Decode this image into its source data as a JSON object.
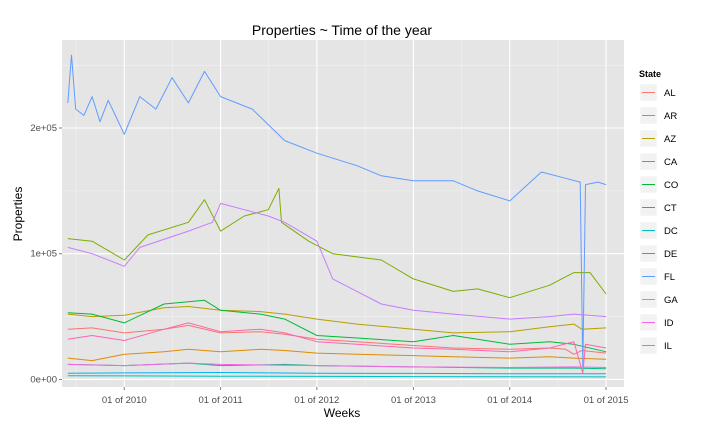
{
  "chart_data": {
    "type": "line",
    "title": "Properties ~ Time of the year",
    "xlabel": "Weeks",
    "ylabel": "Properties",
    "x_ticks": [
      {
        "label": "01 of 2010",
        "date": "2010-01-01"
      },
      {
        "label": "01 of 2011",
        "date": "2011-01-01"
      },
      {
        "label": "01 of 2012",
        "date": "2012-01-01"
      },
      {
        "label": "01 of 2013",
        "date": "2013-01-01"
      },
      {
        "label": "01 of 2014",
        "date": "2014-01-01"
      },
      {
        "label": "01 of 2015",
        "date": "2015-01-01"
      }
    ],
    "y_ticks": [
      {
        "label": "0e+00",
        "value": 0
      },
      {
        "label": "1e+05",
        "value": 100000
      },
      {
        "label": "2e+05",
        "value": 200000
      }
    ],
    "xlim": [
      "2009-05-10",
      "2015-03-10"
    ],
    "ylim": [
      -6000,
      270000
    ],
    "grid": true,
    "legend": {
      "title": "State",
      "position": "right"
    },
    "series": [
      {
        "name": "AL",
        "color": "#F8766D",
        "points": [
          [
            "2009-06-01",
            40000
          ],
          [
            "2009-09-01",
            41000
          ],
          [
            "2010-01-01",
            37000
          ],
          [
            "2010-06-01",
            40000
          ],
          [
            "2010-09-01",
            43000
          ],
          [
            "2011-01-01",
            37000
          ],
          [
            "2011-06-01",
            38000
          ],
          [
            "2011-09-01",
            36000
          ],
          [
            "2012-01-01",
            32000
          ],
          [
            "2012-06-01",
            30000
          ],
          [
            "2013-01-01",
            27000
          ],
          [
            "2013-06-01",
            25000
          ],
          [
            "2014-01-01",
            24000
          ],
          [
            "2014-06-01",
            25000
          ],
          [
            "2014-08-01",
            24000
          ],
          [
            "2014-09-01",
            20000
          ],
          [
            "2014-10-01",
            23000
          ],
          [
            "2015-01-01",
            21000
          ]
        ]
      },
      {
        "name": "AR",
        "color": "#DE8C00",
        "points": [
          [
            "2009-06-01",
            17000
          ],
          [
            "2009-09-01",
            15000
          ],
          [
            "2010-01-01",
            20000
          ],
          [
            "2010-06-01",
            22000
          ],
          [
            "2010-09-01",
            24000
          ],
          [
            "2011-01-01",
            22000
          ],
          [
            "2011-06-01",
            24000
          ],
          [
            "2011-09-01",
            23000
          ],
          [
            "2012-01-01",
            21000
          ],
          [
            "2012-06-01",
            20000
          ],
          [
            "2013-01-01",
            19000
          ],
          [
            "2013-06-01",
            18000
          ],
          [
            "2014-01-01",
            17000
          ],
          [
            "2014-06-01",
            18000
          ],
          [
            "2014-09-01",
            17000
          ],
          [
            "2015-01-01",
            16000
          ]
        ]
      },
      {
        "name": "AZ",
        "color": "#B79F00",
        "points": [
          [
            "2009-06-01",
            52000
          ],
          [
            "2009-09-01",
            50000
          ],
          [
            "2010-01-01",
            51000
          ],
          [
            "2010-06-01",
            57000
          ],
          [
            "2010-09-01",
            58000
          ],
          [
            "2011-01-01",
            55000
          ],
          [
            "2011-06-01",
            54000
          ],
          [
            "2011-09-01",
            52000
          ],
          [
            "2012-01-01",
            48000
          ],
          [
            "2012-06-01",
            44000
          ],
          [
            "2013-01-01",
            40000
          ],
          [
            "2013-06-01",
            37000
          ],
          [
            "2014-01-01",
            38000
          ],
          [
            "2014-06-01",
            42000
          ],
          [
            "2014-09-01",
            44000
          ],
          [
            "2014-10-01",
            40000
          ],
          [
            "2015-01-01",
            41000
          ]
        ]
      },
      {
        "name": "CA",
        "color": "#7CAE00",
        "points": [
          [
            "2009-06-01",
            112000
          ],
          [
            "2009-09-01",
            110000
          ],
          [
            "2010-01-01",
            95000
          ],
          [
            "2010-04-01",
            115000
          ],
          [
            "2010-09-01",
            125000
          ],
          [
            "2010-11-01",
            143000
          ],
          [
            "2011-01-01",
            118000
          ],
          [
            "2011-04-01",
            130000
          ],
          [
            "2011-07-01",
            135000
          ],
          [
            "2011-08-10",
            152000
          ],
          [
            "2011-08-20",
            125000
          ],
          [
            "2011-12-01",
            110000
          ],
          [
            "2012-03-01",
            100000
          ],
          [
            "2012-09-01",
            95000
          ],
          [
            "2013-01-01",
            80000
          ],
          [
            "2013-06-01",
            70000
          ],
          [
            "2013-09-01",
            72000
          ],
          [
            "2014-01-01",
            65000
          ],
          [
            "2014-06-01",
            75000
          ],
          [
            "2014-09-01",
            85000
          ],
          [
            "2014-11-01",
            85000
          ],
          [
            "2015-01-01",
            68000
          ]
        ]
      },
      {
        "name": "CO",
        "color": "#00BA38",
        "points": [
          [
            "2009-06-01",
            53000
          ],
          [
            "2009-09-01",
            52000
          ],
          [
            "2010-01-01",
            45000
          ],
          [
            "2010-06-01",
            60000
          ],
          [
            "2010-11-01",
            63000
          ],
          [
            "2011-01-01",
            55000
          ],
          [
            "2011-06-01",
            52000
          ],
          [
            "2011-09-01",
            48000
          ],
          [
            "2012-01-01",
            35000
          ],
          [
            "2012-06-01",
            33000
          ],
          [
            "2013-01-01",
            30000
          ],
          [
            "2013-06-01",
            35000
          ],
          [
            "2013-09-01",
            32000
          ],
          [
            "2014-01-01",
            28000
          ],
          [
            "2014-06-01",
            30000
          ],
          [
            "2014-09-01",
            28000
          ],
          [
            "2015-01-01",
            22000
          ]
        ]
      },
      {
        "name": "CT",
        "color": "#00C08B",
        "points": [
          [
            "2009-06-01",
            12000
          ],
          [
            "2010-01-01",
            11000
          ],
          [
            "2010-09-01",
            13000
          ],
          [
            "2011-01-01",
            11000
          ],
          [
            "2011-09-01",
            12000
          ],
          [
            "2012-01-01",
            11000
          ],
          [
            "2013-01-01",
            10000
          ],
          [
            "2014-01-01",
            9000
          ],
          [
            "2014-09-01",
            9000
          ],
          [
            "2015-01-01",
            8500
          ]
        ]
      },
      {
        "name": "DC",
        "color": "#00BFC4",
        "points": [
          [
            "2009-06-01",
            3000
          ],
          [
            "2010-01-01",
            2800
          ],
          [
            "2011-01-01",
            2600
          ],
          [
            "2012-01-01",
            2400
          ],
          [
            "2013-01-01",
            2300
          ],
          [
            "2014-01-01",
            2200
          ],
          [
            "2015-01-01",
            2000
          ]
        ]
      },
      {
        "name": "DE",
        "color": "#00B4F0",
        "points": [
          [
            "2009-06-01",
            5000
          ],
          [
            "2010-01-01",
            5200
          ],
          [
            "2011-01-01",
            5500
          ],
          [
            "2012-01-01",
            5000
          ],
          [
            "2013-01-01",
            4800
          ],
          [
            "2014-01-01",
            4600
          ],
          [
            "2015-01-01",
            4500
          ]
        ]
      },
      {
        "name": "FL",
        "color": "#619CFF",
        "points": [
          [
            "2009-06-01",
            220000
          ],
          [
            "2009-06-15",
            258000
          ],
          [
            "2009-07-01",
            215000
          ],
          [
            "2009-08-01",
            210000
          ],
          [
            "2009-09-01",
            225000
          ],
          [
            "2009-10-01",
            205000
          ],
          [
            "2009-11-01",
            222000
          ],
          [
            "2010-01-01",
            195000
          ],
          [
            "2010-03-01",
            225000
          ],
          [
            "2010-05-01",
            215000
          ],
          [
            "2010-07-01",
            240000
          ],
          [
            "2010-09-01",
            220000
          ],
          [
            "2010-11-01",
            245000
          ],
          [
            "2011-01-01",
            225000
          ],
          [
            "2011-05-01",
            215000
          ],
          [
            "2011-09-01",
            190000
          ],
          [
            "2012-01-01",
            180000
          ],
          [
            "2012-06-01",
            170000
          ],
          [
            "2012-09-01",
            162000
          ],
          [
            "2013-01-01",
            158000
          ],
          [
            "2013-06-01",
            158000
          ],
          [
            "2013-09-01",
            150000
          ],
          [
            "2014-01-01",
            142000
          ],
          [
            "2014-05-01",
            165000
          ],
          [
            "2014-08-01",
            160000
          ],
          [
            "2014-09-25",
            157000
          ],
          [
            "2014-10-05",
            10000
          ],
          [
            "2014-10-15",
            155000
          ],
          [
            "2014-12-01",
            157000
          ],
          [
            "2015-01-01",
            155000
          ]
        ]
      },
      {
        "name": "GA",
        "color": "#C77CFF",
        "points": [
          [
            "2009-06-01",
            105000
          ],
          [
            "2009-09-01",
            100000
          ],
          [
            "2010-01-01",
            90000
          ],
          [
            "2010-03-01",
            105000
          ],
          [
            "2010-09-01",
            118000
          ],
          [
            "2010-12-01",
            125000
          ],
          [
            "2011-01-01",
            140000
          ],
          [
            "2011-04-01",
            135000
          ],
          [
            "2011-07-01",
            130000
          ],
          [
            "2011-09-01",
            125000
          ],
          [
            "2012-01-01",
            110000
          ],
          [
            "2012-03-01",
            80000
          ],
          [
            "2012-06-01",
            70000
          ],
          [
            "2012-09-01",
            60000
          ],
          [
            "2013-01-01",
            55000
          ],
          [
            "2013-06-01",
            52000
          ],
          [
            "2014-01-01",
            48000
          ],
          [
            "2014-06-01",
            50000
          ],
          [
            "2014-09-01",
            52000
          ],
          [
            "2015-01-01",
            50000
          ]
        ]
      },
      {
        "name": "ID",
        "color": "#F564E3",
        "points": [
          [
            "2009-06-01",
            12000
          ],
          [
            "2010-01-01",
            11000
          ],
          [
            "2010-09-01",
            13000
          ],
          [
            "2011-01-01",
            12000
          ],
          [
            "2012-01-01",
            11000
          ],
          [
            "2013-01-01",
            10000
          ],
          [
            "2014-01-01",
            9500
          ],
          [
            "2014-09-01",
            10000
          ],
          [
            "2015-01-01",
            9500
          ]
        ]
      },
      {
        "name": "IL",
        "color": "#FF64B0",
        "points": [
          [
            "2009-06-01",
            32000
          ],
          [
            "2009-09-01",
            35000
          ],
          [
            "2010-01-01",
            31000
          ],
          [
            "2010-06-01",
            40000
          ],
          [
            "2010-09-01",
            45000
          ],
          [
            "2011-01-01",
            38000
          ],
          [
            "2011-06-01",
            40000
          ],
          [
            "2011-09-01",
            37000
          ],
          [
            "2012-01-01",
            30000
          ],
          [
            "2012-06-01",
            28000
          ],
          [
            "2013-01-01",
            25000
          ],
          [
            "2013-06-01",
            24000
          ],
          [
            "2014-01-01",
            22000
          ],
          [
            "2014-06-01",
            25000
          ],
          [
            "2014-09-01",
            30000
          ],
          [
            "2014-10-05",
            5000
          ],
          [
            "2014-10-15",
            28000
          ],
          [
            "2015-01-01",
            25000
          ]
        ]
      }
    ]
  }
}
